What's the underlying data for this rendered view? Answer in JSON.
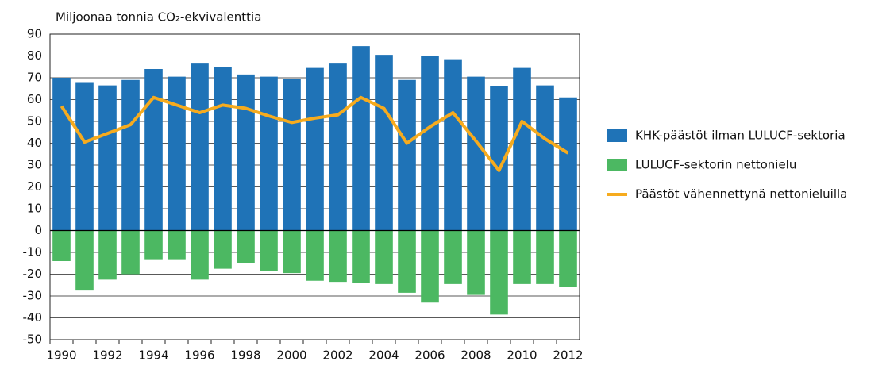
{
  "chart_data": {
    "type": "bar",
    "title": "Miljoonaa tonnia CO₂-ekvivalenttia",
    "categories": [
      "1990",
      null,
      "1992",
      null,
      "1994",
      null,
      "1996",
      null,
      "1998",
      null,
      "2000",
      null,
      "2002",
      null,
      "2004",
      null,
      "2006",
      null,
      "2008",
      null,
      "2010",
      null,
      "2012"
    ],
    "series": [
      {
        "name": "KHK-päästöt ilman LULUCF-sektoria",
        "color": "#1f73b7",
        "type": "bar",
        "values": [
          70,
          68,
          66.5,
          69,
          74,
          70.5,
          76.5,
          75,
          71.5,
          70.5,
          69.5,
          74.5,
          76.5,
          84.5,
          80.5,
          69,
          80,
          78.5,
          70.5,
          66,
          74.5,
          66.5,
          61
        ]
      },
      {
        "name": "LULUCF-sektorin nettonielu",
        "color": "#4cb862",
        "type": "bar",
        "values": [
          -14,
          -27.5,
          -22.5,
          -20,
          -13.5,
          -13.5,
          -22.5,
          -17.5,
          -15,
          -18.5,
          -19.5,
          -23,
          -23.5,
          -24,
          -24.5,
          -28.5,
          -33,
          -24.5,
          -29.5,
          -38.5,
          -24.5,
          -24.5,
          -26
        ]
      },
      {
        "name": "Päästöt vähennettynä nettonieluilla",
        "color": "#f6ab1e",
        "type": "line",
        "values": [
          57,
          40.5,
          44.5,
          48.5,
          61,
          57.5,
          54,
          57.5,
          56,
          52.5,
          49.5,
          51.5,
          53,
          61,
          56,
          40,
          47.5,
          54,
          41,
          27.5,
          50,
          42,
          35.5
        ]
      }
    ],
    "ylim": [
      -50,
      90
    ],
    "yticks": [
      -50,
      -40,
      -30,
      -20,
      -10,
      0,
      10,
      20,
      30,
      40,
      50,
      60,
      70,
      80,
      90
    ],
    "grid": true,
    "legend": "right"
  }
}
